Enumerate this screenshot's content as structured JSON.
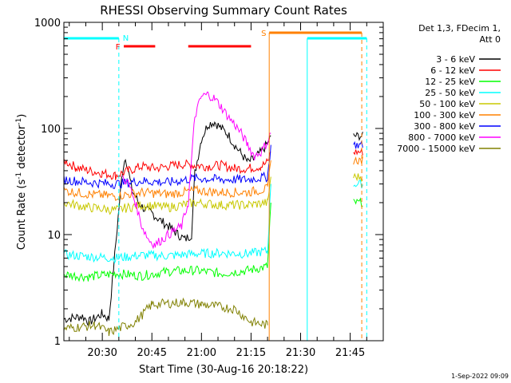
{
  "chart_data": {
    "type": "line",
    "title": "RHESSI Observing Summary Count Rates",
    "xlabel": "Start Time (30-Aug-16 20:18:22)",
    "ylabel": "Count Rate (s⁻¹ detector⁻¹)",
    "ylabel_base": "Count Rate (s",
    "ylabel_sup1": "-1",
    "ylabel_mid": " detector",
    "ylabel_sup2": "-1",
    "ylabel_end": ")",
    "y_scale": "log",
    "ylim": [
      1,
      1000
    ],
    "xlim": [
      "20:18:22",
      "21:55:00"
    ],
    "x_ticks": [
      "20:30",
      "20:45",
      "21:00",
      "21:15",
      "21:30",
      "21:45"
    ],
    "x_tick_minutes": [
      30,
      45,
      60,
      75,
      90,
      105
    ],
    "x_range_minutes": [
      18.37,
      115
    ],
    "y_ticks": [
      "1",
      "10",
      "100",
      "1000"
    ],
    "y_tick_values": [
      1,
      10,
      100,
      1000
    ],
    "legend_title": [
      "Det 1,3, FDecim 1,",
      "Att 0"
    ],
    "legend_position": "right",
    "series": [
      {
        "name": "3 - 6 keV",
        "color": "#000000",
        "points": [
          [
            18.4,
            1.6
          ],
          [
            24,
            1.7
          ],
          [
            26,
            1.5
          ],
          [
            30,
            1.8
          ],
          [
            32,
            1.6
          ],
          [
            36,
            38
          ],
          [
            37,
            55
          ],
          [
            39,
            26
          ],
          [
            41,
            20
          ],
          [
            43,
            17
          ],
          [
            45,
            16
          ],
          [
            47,
            14
          ],
          [
            50,
            12
          ],
          [
            53,
            10
          ],
          [
            55,
            9
          ],
          [
            57,
            10
          ],
          [
            58,
            38
          ],
          [
            60,
            80
          ],
          [
            62,
            110
          ],
          [
            64,
            115
          ],
          [
            66,
            100
          ],
          [
            68,
            88
          ],
          [
            70,
            70
          ],
          [
            72,
            58
          ],
          [
            74,
            48
          ],
          [
            76,
            52
          ],
          [
            78,
            60
          ],
          [
            80,
            72
          ],
          [
            81,
            85
          ]
        ]
      },
      {
        "name": "6 - 12 keV",
        "color": "#ff0000",
        "points": [
          [
            18.4,
            50
          ],
          [
            22,
            43
          ],
          [
            26,
            40
          ],
          [
            30,
            38
          ],
          [
            34,
            36
          ],
          [
            38,
            40
          ],
          [
            42,
            44
          ],
          [
            46,
            42
          ],
          [
            50,
            44
          ],
          [
            54,
            46
          ],
          [
            58,
            45
          ],
          [
            62,
            44
          ],
          [
            66,
            45
          ],
          [
            70,
            42
          ],
          [
            74,
            42
          ],
          [
            78,
            44
          ],
          [
            80,
            48
          ],
          [
            81,
            60
          ]
        ]
      },
      {
        "name": "12 - 25 keV",
        "color": "#00ff00",
        "points": [
          [
            18.4,
            4.2
          ],
          [
            26,
            4.0
          ],
          [
            34,
            4.3
          ],
          [
            42,
            4.1
          ],
          [
            50,
            4.5
          ],
          [
            58,
            4.6
          ],
          [
            66,
            4.3
          ],
          [
            74,
            4.6
          ],
          [
            80,
            5.0
          ],
          [
            81,
            20
          ]
        ]
      },
      {
        "name": "25 - 50 keV",
        "color": "#00ffff",
        "points": [
          [
            18.4,
            6.5
          ],
          [
            26,
            6.2
          ],
          [
            34,
            6.0
          ],
          [
            42,
            6.4
          ],
          [
            50,
            6.3
          ],
          [
            58,
            6.6
          ],
          [
            66,
            6.7
          ],
          [
            74,
            6.6
          ],
          [
            80,
            7.0
          ],
          [
            81,
            30
          ]
        ]
      },
      {
        "name": "50 - 100 keV",
        "color": "#c8c800",
        "points": [
          [
            18.4,
            20
          ],
          [
            26,
            18
          ],
          [
            34,
            17
          ],
          [
            42,
            19
          ],
          [
            50,
            18
          ],
          [
            58,
            20
          ],
          [
            66,
            19
          ],
          [
            74,
            19
          ],
          [
            80,
            20
          ],
          [
            81,
            35
          ]
        ]
      },
      {
        "name": "100 - 300 keV",
        "color": "#ff8000",
        "points": [
          [
            18.4,
            26
          ],
          [
            26,
            24
          ],
          [
            34,
            23
          ],
          [
            42,
            25
          ],
          [
            50,
            24
          ],
          [
            58,
            26
          ],
          [
            66,
            25
          ],
          [
            74,
            25
          ],
          [
            80,
            27
          ],
          [
            81,
            50
          ]
        ]
      },
      {
        "name": "300 - 800 keV",
        "color": "#0000ff",
        "points": [
          [
            18.4,
            33
          ],
          [
            26,
            31
          ],
          [
            34,
            30
          ],
          [
            42,
            32
          ],
          [
            50,
            31
          ],
          [
            58,
            34
          ],
          [
            66,
            33
          ],
          [
            74,
            33
          ],
          [
            80,
            35
          ],
          [
            81,
            70
          ]
        ]
      },
      {
        "name": "800 - 7000 keV",
        "color": "#ff00ff",
        "points": [
          [
            36,
            35
          ],
          [
            38,
            30
          ],
          [
            40,
            20
          ],
          [
            42,
            12
          ],
          [
            44,
            9
          ],
          [
            46,
            8
          ],
          [
            48,
            9
          ],
          [
            50,
            10
          ],
          [
            52,
            11
          ],
          [
            54,
            12
          ],
          [
            56,
            20
          ],
          [
            58,
            130
          ],
          [
            60,
            200
          ],
          [
            62,
            210
          ],
          [
            64,
            190
          ],
          [
            66,
            160
          ],
          [
            68,
            130
          ],
          [
            70,
            110
          ],
          [
            72,
            90
          ],
          [
            74,
            70
          ],
          [
            76,
            55
          ],
          [
            78,
            60
          ],
          [
            80,
            75
          ],
          [
            81,
            90
          ]
        ]
      },
      {
        "name": "7000 - 15000 keV",
        "color": "#808000",
        "points": [
          [
            18.4,
            1.3
          ],
          [
            28,
            1.4
          ],
          [
            32,
            1.2
          ],
          [
            40,
            1.5
          ],
          [
            45,
            2.2
          ],
          [
            55,
            2.3
          ],
          [
            60,
            2.2
          ],
          [
            70,
            2.0
          ],
          [
            75,
            1.5
          ],
          [
            80,
            1.4
          ]
        ]
      }
    ],
    "late_data_minutes": [
      106,
      109
    ],
    "annotations": [
      {
        "label": "N",
        "color": "#00ffff"
      },
      {
        "label": "F",
        "color": "#ff0000"
      },
      {
        "label": "S",
        "color": "#ff8000"
      }
    ],
    "date_stamp": "1-Sep-2022 09:09"
  }
}
